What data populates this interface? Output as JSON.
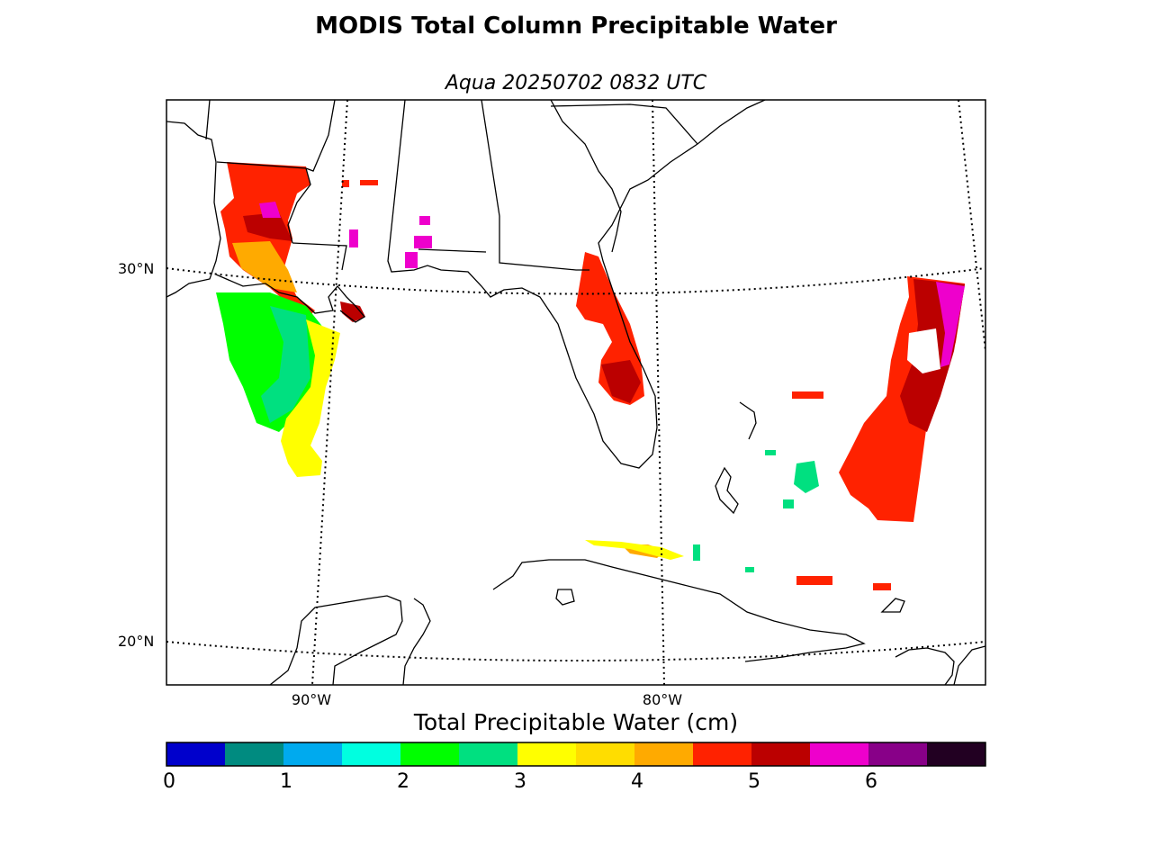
{
  "title": "MODIS Total Column Precipitable Water",
  "subtitle": "Aqua 20250702 0832 UTC",
  "colorbar": {
    "label": "Total Precipitable Water (cm)",
    "ticks": [
      "0",
      "1",
      "2",
      "3",
      "4",
      "5",
      "6"
    ],
    "colors": [
      "#0000cc",
      "#008b80",
      "#00aaee",
      "#00ffe0",
      "#00ff00",
      "#00e080",
      "#ffff00",
      "#ffdd00",
      "#ffaa00",
      "#ff2200",
      "#bb0000",
      "#ee00cc",
      "#880088",
      "#220022"
    ]
  },
  "map_labels": {
    "lat_30": "30°N",
    "lat_20": "20°N",
    "lon_90": "90°W",
    "lon_80": "80°W"
  }
}
